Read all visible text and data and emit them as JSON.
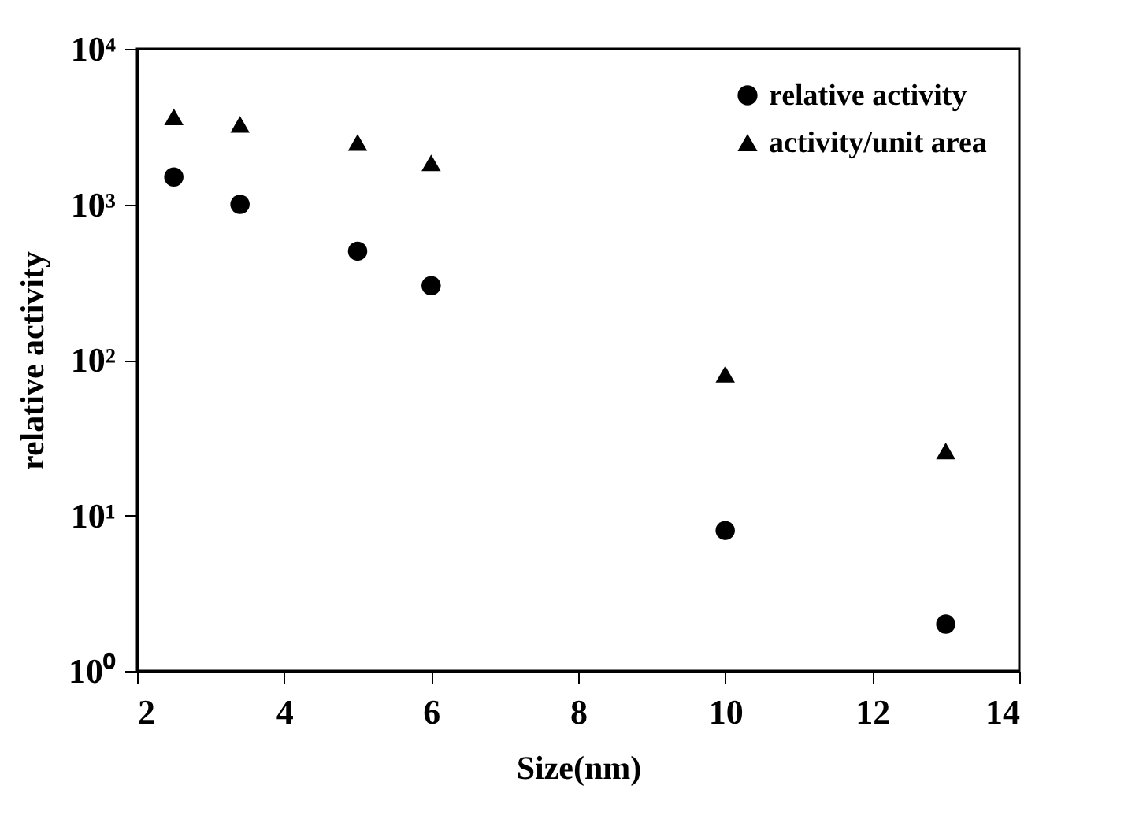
{
  "chart_data": {
    "type": "scatter",
    "xlabel": "Size(nm)",
    "ylabel": "relative activity",
    "log": "y",
    "grid": false,
    "legend": "top right",
    "xlim": [
      2,
      14
    ],
    "xticks": [
      2,
      4,
      6,
      8,
      10,
      12,
      14
    ],
    "ylim": [
      1,
      10000
    ],
    "yticks": [
      {
        "value": 1,
        "label": "10⁰"
      },
      {
        "value": 10,
        "label": "10¹"
      },
      {
        "value": 100,
        "label": "10²"
      },
      {
        "value": 1000,
        "label": "10³"
      },
      {
        "value": 10000,
        "label": "10⁴"
      }
    ],
    "series": [
      {
        "name": "relative activity",
        "color": "#000000",
        "marker": "circle",
        "x": [
          2.5,
          3.4,
          5,
          6,
          10,
          13
        ],
        "values": [
          1500,
          1000,
          500,
          300,
          8,
          2
        ]
      },
      {
        "name": "activity/unit area",
        "color": "#000000",
        "marker": "triangle",
        "x": [
          2.5,
          3.4,
          5,
          6,
          10,
          13
        ],
        "values": [
          3650,
          3270,
          2500,
          1850,
          81,
          26
        ]
      }
    ]
  }
}
